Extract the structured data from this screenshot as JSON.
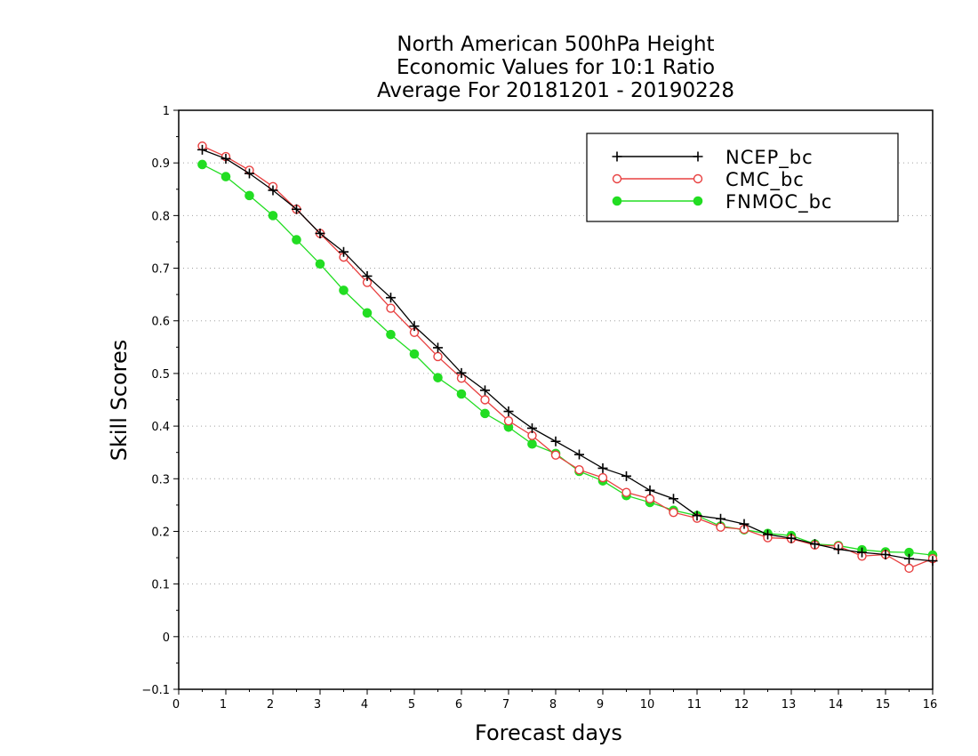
{
  "chart_data": {
    "type": "line",
    "title": [
      "North American 500hPa Height",
      "Economic Values for 10:1 Ratio",
      "Average For 20181201 - 20190228"
    ],
    "xlabel": "Forecast days",
    "ylabel": "Skill Scores",
    "xlim": [
      0,
      16
    ],
    "ylim": [
      -0.1,
      1
    ],
    "xticks": [
      0,
      1,
      2,
      3,
      4,
      5,
      6,
      7,
      8,
      9,
      10,
      11,
      12,
      13,
      14,
      15,
      16
    ],
    "yticks": [
      -0.1,
      0,
      0.1,
      0.2,
      0.3,
      0.4,
      0.5,
      0.6,
      0.7,
      0.8,
      0.9,
      1
    ],
    "ytick_labels": [
      "−0.1",
      "0",
      "0.1",
      "0.2",
      "0.3",
      "0.4",
      "0.5",
      "0.6",
      "0.7",
      "0.8",
      "0.9",
      "1"
    ],
    "grid": "horizontal dotted",
    "legend_position": "top-right",
    "x": [
      0.5,
      1,
      1.5,
      2,
      2.5,
      3,
      3.5,
      4,
      4.5,
      5,
      5.5,
      6,
      6.5,
      7,
      7.5,
      8,
      8.5,
      9,
      9.5,
      10,
      10.5,
      11,
      11.5,
      12,
      12.5,
      13,
      13.5,
      14,
      14.5,
      15,
      15.5,
      16
    ],
    "series": [
      {
        "name": "NCEP_bc",
        "color": "#000000",
        "marker": "plus",
        "values": [
          0.925,
          0.908,
          0.88,
          0.848,
          0.812,
          0.766,
          0.731,
          0.685,
          0.644,
          0.59,
          0.549,
          0.501,
          0.468,
          0.428,
          0.396,
          0.371,
          0.346,
          0.32,
          0.305,
          0.278,
          0.262,
          0.23,
          0.224,
          0.214,
          0.194,
          0.187,
          0.176,
          0.166,
          0.16,
          0.156,
          0.148,
          0.144
        ]
      },
      {
        "name": "CMC_bc",
        "color": "#e84040",
        "marker": "open-circle",
        "values": [
          0.932,
          0.912,
          0.886,
          0.855,
          0.812,
          0.766,
          0.721,
          0.673,
          0.624,
          0.578,
          0.532,
          0.491,
          0.45,
          0.41,
          0.382,
          0.345,
          0.317,
          0.302,
          0.274,
          0.262,
          0.236,
          0.225,
          0.208,
          0.204,
          0.188,
          0.186,
          0.174,
          0.172,
          0.153,
          0.156,
          0.13,
          0.148
        ]
      },
      {
        "name": "FNMOC_bc",
        "color": "#22dd22",
        "marker": "filled-circle",
        "values": [
          0.897,
          0.874,
          0.838,
          0.8,
          0.754,
          0.708,
          0.658,
          0.615,
          0.574,
          0.537,
          0.492,
          0.461,
          0.424,
          0.398,
          0.366,
          0.348,
          0.314,
          0.296,
          0.268,
          0.255,
          0.24,
          0.23,
          0.21,
          0.203,
          0.196,
          0.192,
          0.176,
          0.173,
          0.165,
          0.161,
          0.16,
          0.155
        ]
      }
    ]
  }
}
